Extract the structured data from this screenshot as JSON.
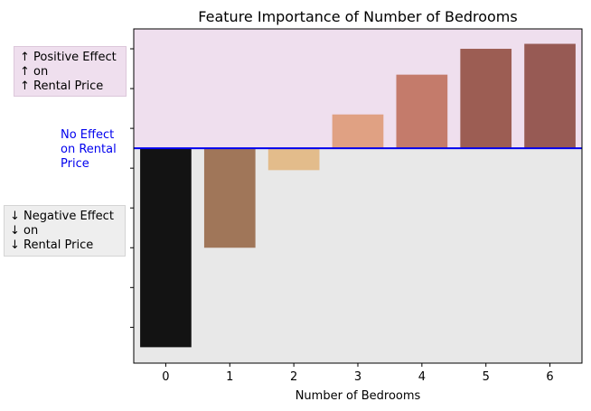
{
  "chart_data": {
    "type": "bar",
    "title": "Feature Importance of Number of Bedrooms",
    "xlabel": "Number of Bedrooms",
    "ylabel": "",
    "categories": [
      "0",
      "1",
      "2",
      "3",
      "4",
      "5",
      "6"
    ],
    "values": [
      -1.0,
      -0.5,
      -0.11,
      0.17,
      0.37,
      0.5,
      0.525
    ],
    "ylim": [
      -1.08,
      0.6
    ],
    "yticks": [
      0.5,
      0.3,
      0.1,
      -0.1,
      -0.3,
      -0.5,
      -0.7,
      -0.9
    ],
    "grid": false,
    "colors": [
      "#131313",
      "#a07659",
      "#e3bc8b",
      "#e0a183",
      "#c47b6b",
      "#9c5d53",
      "#975a54"
    ],
    "zero_line_color": "#0000ee",
    "positive_region_color": "#efdfee",
    "negative_region_color": "#e8e8e8",
    "annotations": {
      "positive": "↑ Positive Effect\n↑ on\n↑ Rental Price",
      "zero": "No Effect\non Rental\nPrice",
      "negative": "↓ Negative Effect\n↓ on\n↓ Rental Price"
    }
  }
}
